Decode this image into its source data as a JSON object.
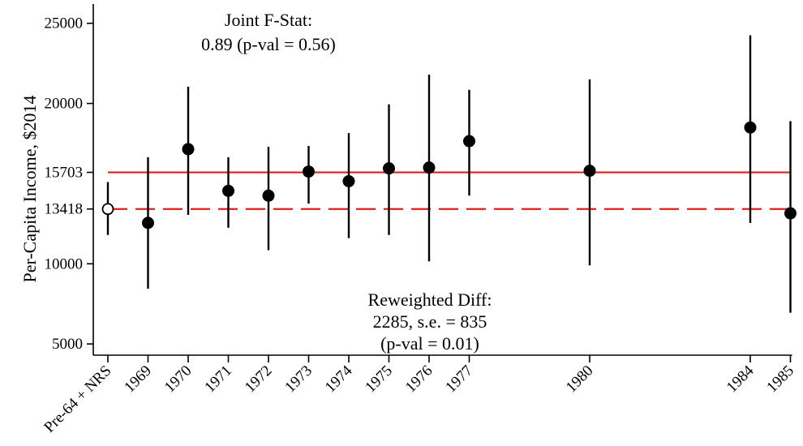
{
  "chart_data": {
    "type": "scatter",
    "ylabel": "Per-Capita Income, $2014",
    "xlabel": "",
    "ylim": [
      4300,
      26200
    ],
    "yticks": [
      5000,
      10000,
      13418,
      15703,
      20000,
      25000
    ],
    "categories": [
      "Pre-64 + NRS",
      "1969",
      "1970",
      "1971",
      "1972",
      "1973",
      "1974",
      "1975",
      "1976",
      "1977",
      "1980",
      "1984",
      "1985"
    ],
    "x_positions": [
      1964,
      1969,
      1970,
      1971,
      1972,
      1973,
      1974,
      1975,
      1976,
      1977,
      1980,
      1984,
      1985
    ],
    "series": [
      {
        "marker": "open-circle",
        "points": [
          {
            "x": 1964,
            "y": 13418,
            "lo": 11800,
            "hi": 15100
          }
        ]
      },
      {
        "marker": "filled-circle",
        "points": [
          {
            "x": 1969,
            "y": 12550,
            "lo": 8450,
            "hi": 16650
          },
          {
            "x": 1970,
            "y": 17150,
            "lo": 13050,
            "hi": 21050
          },
          {
            "x": 1971,
            "y": 14550,
            "lo": 12250,
            "hi": 16650
          },
          {
            "x": 1972,
            "y": 14250,
            "lo": 10850,
            "hi": 17300
          },
          {
            "x": 1973,
            "y": 15750,
            "lo": 13750,
            "hi": 17350
          },
          {
            "x": 1974,
            "y": 15150,
            "lo": 11600,
            "hi": 18150
          },
          {
            "x": 1975,
            "y": 15950,
            "lo": 11800,
            "hi": 19950
          },
          {
            "x": 1976,
            "y": 16000,
            "lo": 10150,
            "hi": 21800
          },
          {
            "x": 1977,
            "y": 17650,
            "lo": 14250,
            "hi": 20850
          },
          {
            "x": 1980,
            "y": 15800,
            "lo": 9900,
            "hi": 21500
          },
          {
            "x": 1984,
            "y": 18500,
            "lo": 12550,
            "hi": 24250
          },
          {
            "x": 1985,
            "y": 13150,
            "lo": 6950,
            "hi": 18900
          }
        ]
      }
    ],
    "reference_lines": [
      {
        "y": 15703,
        "style": "solid",
        "color": "#e01e1e"
      },
      {
        "y": 13418,
        "style": "dashed",
        "color": "#e01e1e"
      }
    ],
    "annotations": {
      "top": [
        "Joint F-Stat:",
        "0.89 (p-val = 0.56)"
      ],
      "bottom": [
        "Reweighted Diff:",
        "2285, s.e. = 835",
        "(p-val = 0.01)"
      ]
    },
    "grid": false,
    "legend": "none"
  }
}
